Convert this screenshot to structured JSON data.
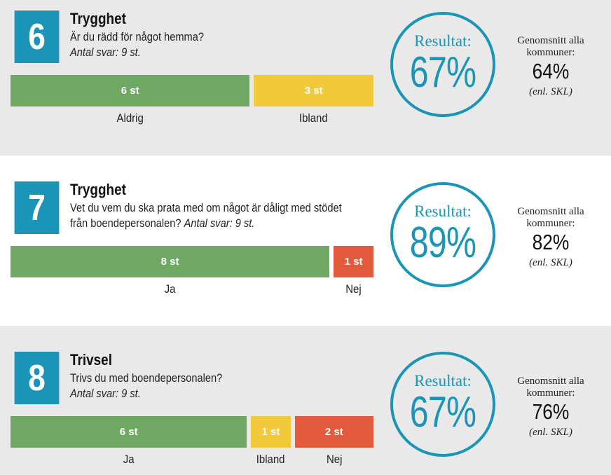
{
  "colors": {
    "accent": "#1a95b8",
    "green": "#6ea863",
    "yellow": "#f2c93a",
    "red": "#e35a3c",
    "panel_gray": "#e9e9e9",
    "panel_white": "#ffffff"
  },
  "chart_data": [
    {
      "type": "bar",
      "number": "6",
      "title": "Trygghet",
      "question": "Är du rädd för något hemma?",
      "answers": "Antal svar: 9 st.",
      "total": 9,
      "series": [
        {
          "name": "Aldrig",
          "value": 6,
          "label": "6 st",
          "color": "#6ea863"
        },
        {
          "name": "Ibland",
          "value": 3,
          "label": "3 st",
          "color": "#f2c93a"
        }
      ],
      "result_label": "Resultat:",
      "result_value": "67%",
      "avg_label_1": "Genomsnitt alla",
      "avg_label_2": "kommuner:",
      "avg_value": "64%",
      "avg_source": "(enl. SKL)"
    },
    {
      "type": "bar",
      "number": "7",
      "title": "Trygghet",
      "question_line1": "Vet du vem du ska prata med om något är dåligt med stödet",
      "question_line2": "från boendepersonalen?",
      "answers": "Antal svar: 9 st.",
      "total": 9,
      "series": [
        {
          "name": "Ja",
          "value": 8,
          "label": "8 st",
          "color": "#6ea863"
        },
        {
          "name": "Nej",
          "value": 1,
          "label": "1 st",
          "color": "#e35a3c"
        }
      ],
      "result_label": "Resultat:",
      "result_value": "89%",
      "avg_label_1": "Genomsnitt alla",
      "avg_label_2": "kommuner:",
      "avg_value": "82%",
      "avg_source": "(enl. SKL)"
    },
    {
      "type": "bar",
      "number": "8",
      "title": "Trivsel",
      "question": "Trivs du med boendepersonalen?",
      "answers": "Antal svar: 9 st.",
      "total": 9,
      "series": [
        {
          "name": "Ja",
          "value": 6,
          "label": "6 st",
          "color": "#6ea863"
        },
        {
          "name": "Ibland",
          "value": 1,
          "label": "1 st",
          "color": "#f2c93a"
        },
        {
          "name": "Nej",
          "value": 2,
          "label": "2 st",
          "color": "#e35a3c"
        }
      ],
      "result_label": "Resultat:",
      "result_value": "67%",
      "avg_label_1": "Genomsnitt alla",
      "avg_label_2": "kommuner:",
      "avg_value": "76%",
      "avg_source": "(enl. SKL)"
    }
  ]
}
